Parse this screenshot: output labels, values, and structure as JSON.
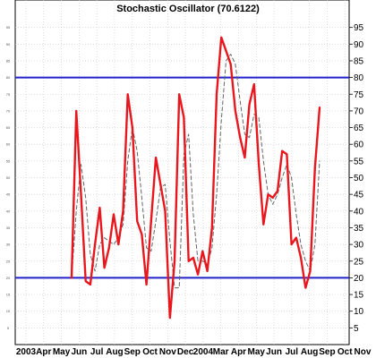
{
  "chart_data": {
    "type": "line",
    "title": "Stochastic Oscillator (70.6122)",
    "xlabel": "",
    "ylabel": "",
    "ylim": [
      0,
      100
    ],
    "y_ticks": [
      5,
      10,
      15,
      20,
      25,
      30,
      35,
      40,
      45,
      50,
      55,
      60,
      65,
      70,
      75,
      80,
      85,
      90,
      95
    ],
    "x_tick_labels": [
      "2003",
      "Apr",
      "May",
      "Jun",
      "Jul",
      "Aug",
      "Sep",
      "Oct",
      "Nov",
      "Dec",
      "2004",
      "Mar",
      "Apr",
      "May",
      "Jun",
      "Jul",
      "Aug",
      "Sep",
      "Oct",
      "Nov"
    ],
    "grid": true,
    "reference_lines": [
      {
        "value": 80,
        "color": "#2222cc"
      },
      {
        "value": 20,
        "color": "#2222cc"
      }
    ],
    "series": [
      {
        "color": "#e8161d",
        "style": "solid",
        "values": [
          20,
          70,
          45,
          19,
          18,
          30,
          41,
          23,
          29,
          39,
          30,
          40,
          75,
          65,
          37,
          33,
          18,
          37,
          56,
          48,
          40,
          8,
          25,
          75,
          68,
          25,
          26,
          21,
          28,
          22,
          35,
          75,
          92,
          88,
          84,
          70,
          62,
          56,
          72,
          78,
          54,
          36,
          45,
          44,
          46,
          58,
          57,
          30,
          32,
          26,
          17,
          22,
          53,
          71
        ]
      },
      {
        "color": "#666666",
        "style": "dashed",
        "values": [
          20,
          40,
          54,
          44,
          27,
          22,
          30,
          32,
          31,
          30,
          32,
          36,
          55,
          65,
          58,
          44,
          29,
          28,
          37,
          47,
          48,
          31,
          17,
          17,
          57,
          63,
          39,
          25,
          25,
          24,
          29,
          45,
          67,
          85,
          87,
          84,
          73,
          63,
          62,
          69,
          68,
          55,
          45,
          42,
          45,
          50,
          54,
          50,
          39,
          30,
          25,
          22,
          30,
          55
        ]
      }
    ]
  }
}
